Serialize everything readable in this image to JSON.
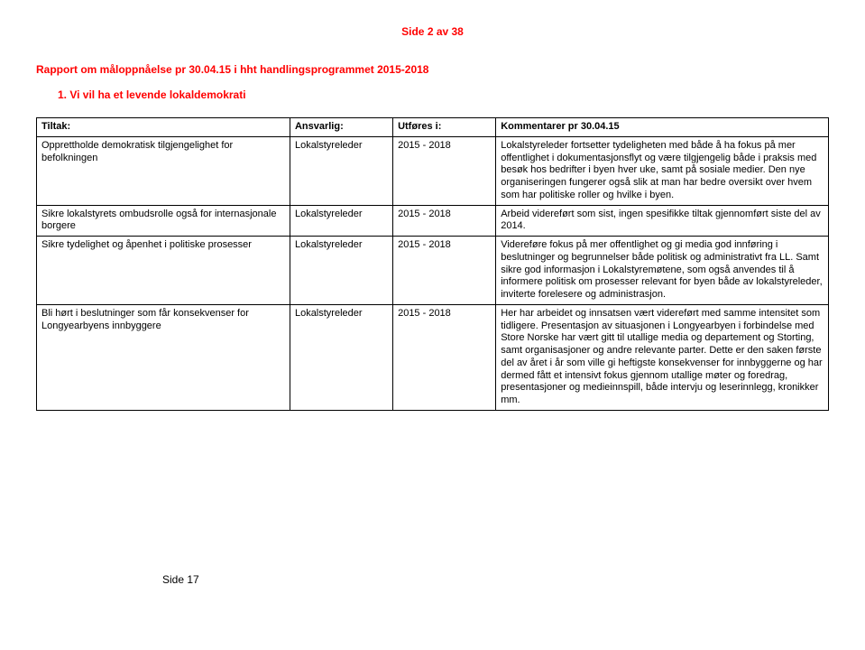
{
  "header": {
    "page_label": "Side 2 av 38"
  },
  "title": "Rapport om måloppnåelse pr 30.04.15 i hht handlingsprogrammet 2015-2018",
  "section": "1.   Vi vil ha et levende lokaldemokrati",
  "table": {
    "columns": [
      "Tiltak:",
      "Ansvarlig:",
      "Utføres i:",
      "Kommentarer pr 30.04.15"
    ],
    "rows": [
      {
        "tiltak": "Opprettholde demokratisk tilgjengelighet for befolkningen",
        "ansvarlig": "Lokalstyreleder",
        "utfores": "2015 - 2018",
        "kommentar": "Lokalstyreleder fortsetter tydeligheten med både å ha fokus på mer offentlighet i dokumentasjonsflyt og være tilgjengelig både i praksis med besøk hos bedrifter i byen hver uke, samt på sosiale medier. Den nye organiseringen fungerer også slik at man har bedre oversikt over hvem som har politiske roller og hvilke i byen."
      },
      {
        "tiltak": "Sikre lokalstyrets ombudsrolle også for internasjonale borgere",
        "ansvarlig": "Lokalstyreleder",
        "utfores": "2015 - 2018",
        "kommentar": "Arbeid videreført som sist, ingen spesifikke tiltak gjennomført siste del av 2014."
      },
      {
        "tiltak": "Sikre tydelighet og åpenhet i politiske prosesser",
        "ansvarlig": "Lokalstyreleder",
        "utfores": "2015 - 2018",
        "kommentar": "Videreføre fokus på mer offentlighet og gi media god innføring i beslutninger og begrunnelser både politisk og administrativt fra LL. Samt sikre god informasjon i Lokalstyremøtene, som også anvendes til å informere politisk om prosesser relevant for byen både av lokalstyreleder, inviterte forelesere og administrasjon."
      },
      {
        "tiltak": "Bli hørt i beslutninger som får konsekvenser for Longyearbyens innbyggere",
        "ansvarlig": "Lokalstyreleder",
        "utfores": "2015 - 2018",
        "kommentar": "Her har arbeidet og innsatsen vært videreført med samme intensitet som tidligere. Presentasjon av situasjonen i Longyearbyen i forbindelse med Store Norske har vært gitt til utallige media og departement og Storting, samt organisasjoner og andre relevante parter. Dette er den saken første del av året i år som ville gi heftigste konsekvenser for innbyggerne og har dermed fått et intensivt fokus gjennom utallige møter og foredrag, presentasjoner og medieinnspill, både intervju og leserinnlegg, kronikker mm."
      }
    ]
  },
  "footer": "Side 17"
}
